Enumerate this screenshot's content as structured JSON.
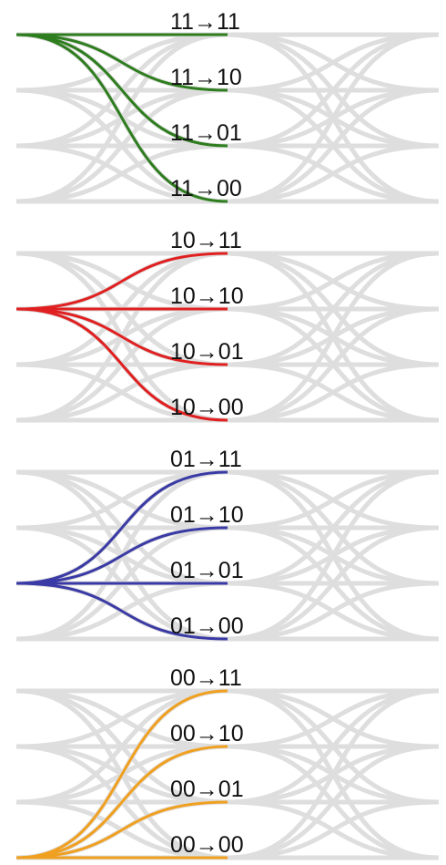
{
  "panels": [
    {
      "source": "11",
      "color": "#2e7d1e",
      "labels": [
        "11→11",
        "11→10",
        "11→01",
        "11→00"
      ]
    },
    {
      "source": "10",
      "color": "#e02020",
      "labels": [
        "10→11",
        "10→10",
        "10→01",
        "10→00"
      ]
    },
    {
      "source": "01",
      "color": "#3a3aa6",
      "labels": [
        "01→11",
        "01→10",
        "01→01",
        "01→00"
      ]
    },
    {
      "source": "00",
      "color": "#f0a020",
      "labels": [
        "00→11",
        "00→10",
        "00→01",
        "00→00"
      ]
    }
  ],
  "background_color": "#d6d6d6"
}
